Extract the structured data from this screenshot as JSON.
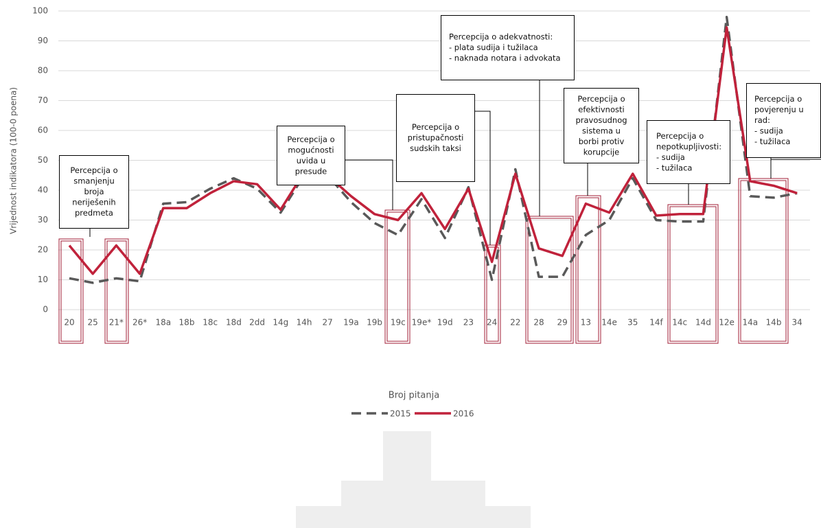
{
  "chart_data": {
    "type": "line",
    "y_axis_label": "Vrijednost indikatora (100-0 poena)",
    "x_axis_label": "Broj pitanja",
    "categories": [
      "20",
      "25",
      "21*",
      "26*",
      "18a",
      "18b",
      "18c",
      "18d",
      "2dd",
      "14g",
      "14h",
      "27",
      "19a",
      "19b",
      "19c",
      "19e*",
      "19d",
      "23",
      "24",
      "22",
      "28",
      "29",
      "13",
      "14e",
      "35",
      "14f",
      "14c",
      "14d",
      "12e",
      "14a",
      "14b",
      "34"
    ],
    "series": [
      {
        "name": "2015",
        "color": "#595959",
        "dashed": true,
        "values": [
          10.5,
          9,
          10.5,
          9.5,
          35.5,
          36,
          40.5,
          44,
          40.5,
          32.5,
          45,
          45,
          36,
          29,
          25,
          37,
          24,
          41,
          10,
          47,
          11,
          11,
          25,
          30,
          44,
          30,
          29.5,
          29.5,
          98,
          38,
          37.5,
          39
        ]
      },
      {
        "name": "2016",
        "color": "#c0223b",
        "dashed": false,
        "values": [
          21.5,
          12,
          21.5,
          12,
          34,
          34,
          39,
          43,
          42,
          33.5,
          46,
          45,
          38,
          32,
          30,
          39,
          27,
          40.5,
          16,
          45.5,
          20.5,
          18,
          35.5,
          32.5,
          45.5,
          31.5,
          32,
          32,
          94.5,
          43,
          41.5,
          39
        ]
      }
    ],
    "ylim": [
      0,
      100
    ],
    "yticks": [
      0,
      10,
      20,
      30,
      40,
      50,
      60,
      70,
      80,
      90,
      100
    ],
    "grid": true,
    "legend": "bottom",
    "annotations": [
      {
        "lines": [
          "Percepcija o",
          "smanjenju",
          "broja",
          "neriješenih",
          "predmeta"
        ]
      },
      {
        "lines": [
          "Percepcija o",
          "mogućnosti",
          "uvida u",
          "presude"
        ]
      },
      {
        "lines": [
          "Percepcija o",
          "pristupačnosti",
          "sudskih taksi"
        ]
      },
      {
        "lines": [
          "Percepcija o adekvatnosti:",
          "- plata sudija i tužilaca",
          "- naknada notara i advokata"
        ]
      },
      {
        "lines": [
          "Percepcija o",
          "efektivnosti",
          "pravosudnog",
          "sistema u",
          "borbi protiv",
          "korupcije"
        ]
      },
      {
        "lines": [
          "Percepcija o",
          "nepotkupljivosti:",
          "-       sudija",
          "-       tužilaca"
        ]
      },
      {
        "lines": [
          "Percepcija o",
          "povjerenju u",
          "rad:",
          "-       sudija",
          "-       tužilaca"
        ]
      }
    ]
  }
}
